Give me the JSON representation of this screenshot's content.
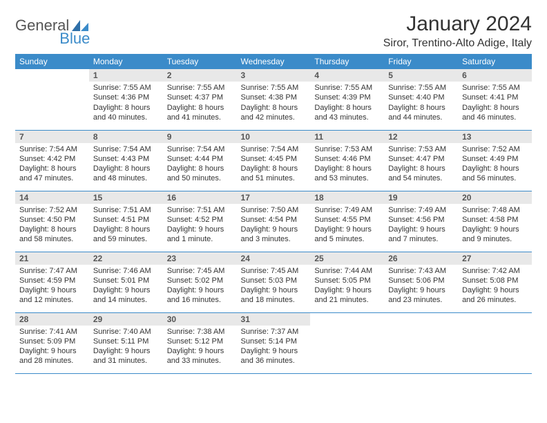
{
  "brand": {
    "word1": "General",
    "word2": "Blue"
  },
  "title": "January 2024",
  "location": "Siror, Trentino-Alto Adige, Italy",
  "colors": {
    "header_bg": "#3b8bc9",
    "header_text": "#ffffff",
    "daynum_bg": "#e8e8e8",
    "text": "#333333",
    "rule": "#3b8bc9",
    "page_bg": "#ffffff"
  },
  "weekdays": [
    "Sunday",
    "Monday",
    "Tuesday",
    "Wednesday",
    "Thursday",
    "Friday",
    "Saturday"
  ],
  "first_weekday_index": 1,
  "days": [
    {
      "n": 1,
      "sunrise": "7:55 AM",
      "sunset": "4:36 PM",
      "daylight": "8 hours and 40 minutes."
    },
    {
      "n": 2,
      "sunrise": "7:55 AM",
      "sunset": "4:37 PM",
      "daylight": "8 hours and 41 minutes."
    },
    {
      "n": 3,
      "sunrise": "7:55 AM",
      "sunset": "4:38 PM",
      "daylight": "8 hours and 42 minutes."
    },
    {
      "n": 4,
      "sunrise": "7:55 AM",
      "sunset": "4:39 PM",
      "daylight": "8 hours and 43 minutes."
    },
    {
      "n": 5,
      "sunrise": "7:55 AM",
      "sunset": "4:40 PM",
      "daylight": "8 hours and 44 minutes."
    },
    {
      "n": 6,
      "sunrise": "7:55 AM",
      "sunset": "4:41 PM",
      "daylight": "8 hours and 46 minutes."
    },
    {
      "n": 7,
      "sunrise": "7:54 AM",
      "sunset": "4:42 PM",
      "daylight": "8 hours and 47 minutes."
    },
    {
      "n": 8,
      "sunrise": "7:54 AM",
      "sunset": "4:43 PM",
      "daylight": "8 hours and 48 minutes."
    },
    {
      "n": 9,
      "sunrise": "7:54 AM",
      "sunset": "4:44 PM",
      "daylight": "8 hours and 50 minutes."
    },
    {
      "n": 10,
      "sunrise": "7:54 AM",
      "sunset": "4:45 PM",
      "daylight": "8 hours and 51 minutes."
    },
    {
      "n": 11,
      "sunrise": "7:53 AM",
      "sunset": "4:46 PM",
      "daylight": "8 hours and 53 minutes."
    },
    {
      "n": 12,
      "sunrise": "7:53 AM",
      "sunset": "4:47 PM",
      "daylight": "8 hours and 54 minutes."
    },
    {
      "n": 13,
      "sunrise": "7:52 AM",
      "sunset": "4:49 PM",
      "daylight": "8 hours and 56 minutes."
    },
    {
      "n": 14,
      "sunrise": "7:52 AM",
      "sunset": "4:50 PM",
      "daylight": "8 hours and 58 minutes."
    },
    {
      "n": 15,
      "sunrise": "7:51 AM",
      "sunset": "4:51 PM",
      "daylight": "8 hours and 59 minutes."
    },
    {
      "n": 16,
      "sunrise": "7:51 AM",
      "sunset": "4:52 PM",
      "daylight": "9 hours and 1 minute."
    },
    {
      "n": 17,
      "sunrise": "7:50 AM",
      "sunset": "4:54 PM",
      "daylight": "9 hours and 3 minutes."
    },
    {
      "n": 18,
      "sunrise": "7:49 AM",
      "sunset": "4:55 PM",
      "daylight": "9 hours and 5 minutes."
    },
    {
      "n": 19,
      "sunrise": "7:49 AM",
      "sunset": "4:56 PM",
      "daylight": "9 hours and 7 minutes."
    },
    {
      "n": 20,
      "sunrise": "7:48 AM",
      "sunset": "4:58 PM",
      "daylight": "9 hours and 9 minutes."
    },
    {
      "n": 21,
      "sunrise": "7:47 AM",
      "sunset": "4:59 PM",
      "daylight": "9 hours and 12 minutes."
    },
    {
      "n": 22,
      "sunrise": "7:46 AM",
      "sunset": "5:01 PM",
      "daylight": "9 hours and 14 minutes."
    },
    {
      "n": 23,
      "sunrise": "7:45 AM",
      "sunset": "5:02 PM",
      "daylight": "9 hours and 16 minutes."
    },
    {
      "n": 24,
      "sunrise": "7:45 AM",
      "sunset": "5:03 PM",
      "daylight": "9 hours and 18 minutes."
    },
    {
      "n": 25,
      "sunrise": "7:44 AM",
      "sunset": "5:05 PM",
      "daylight": "9 hours and 21 minutes."
    },
    {
      "n": 26,
      "sunrise": "7:43 AM",
      "sunset": "5:06 PM",
      "daylight": "9 hours and 23 minutes."
    },
    {
      "n": 27,
      "sunrise": "7:42 AM",
      "sunset": "5:08 PM",
      "daylight": "9 hours and 26 minutes."
    },
    {
      "n": 28,
      "sunrise": "7:41 AM",
      "sunset": "5:09 PM",
      "daylight": "9 hours and 28 minutes."
    },
    {
      "n": 29,
      "sunrise": "7:40 AM",
      "sunset": "5:11 PM",
      "daylight": "9 hours and 31 minutes."
    },
    {
      "n": 30,
      "sunrise": "7:38 AM",
      "sunset": "5:12 PM",
      "daylight": "9 hours and 33 minutes."
    },
    {
      "n": 31,
      "sunrise": "7:37 AM",
      "sunset": "5:14 PM",
      "daylight": "9 hours and 36 minutes."
    }
  ],
  "labels": {
    "sunrise": "Sunrise:",
    "sunset": "Sunset:",
    "daylight": "Daylight:"
  }
}
